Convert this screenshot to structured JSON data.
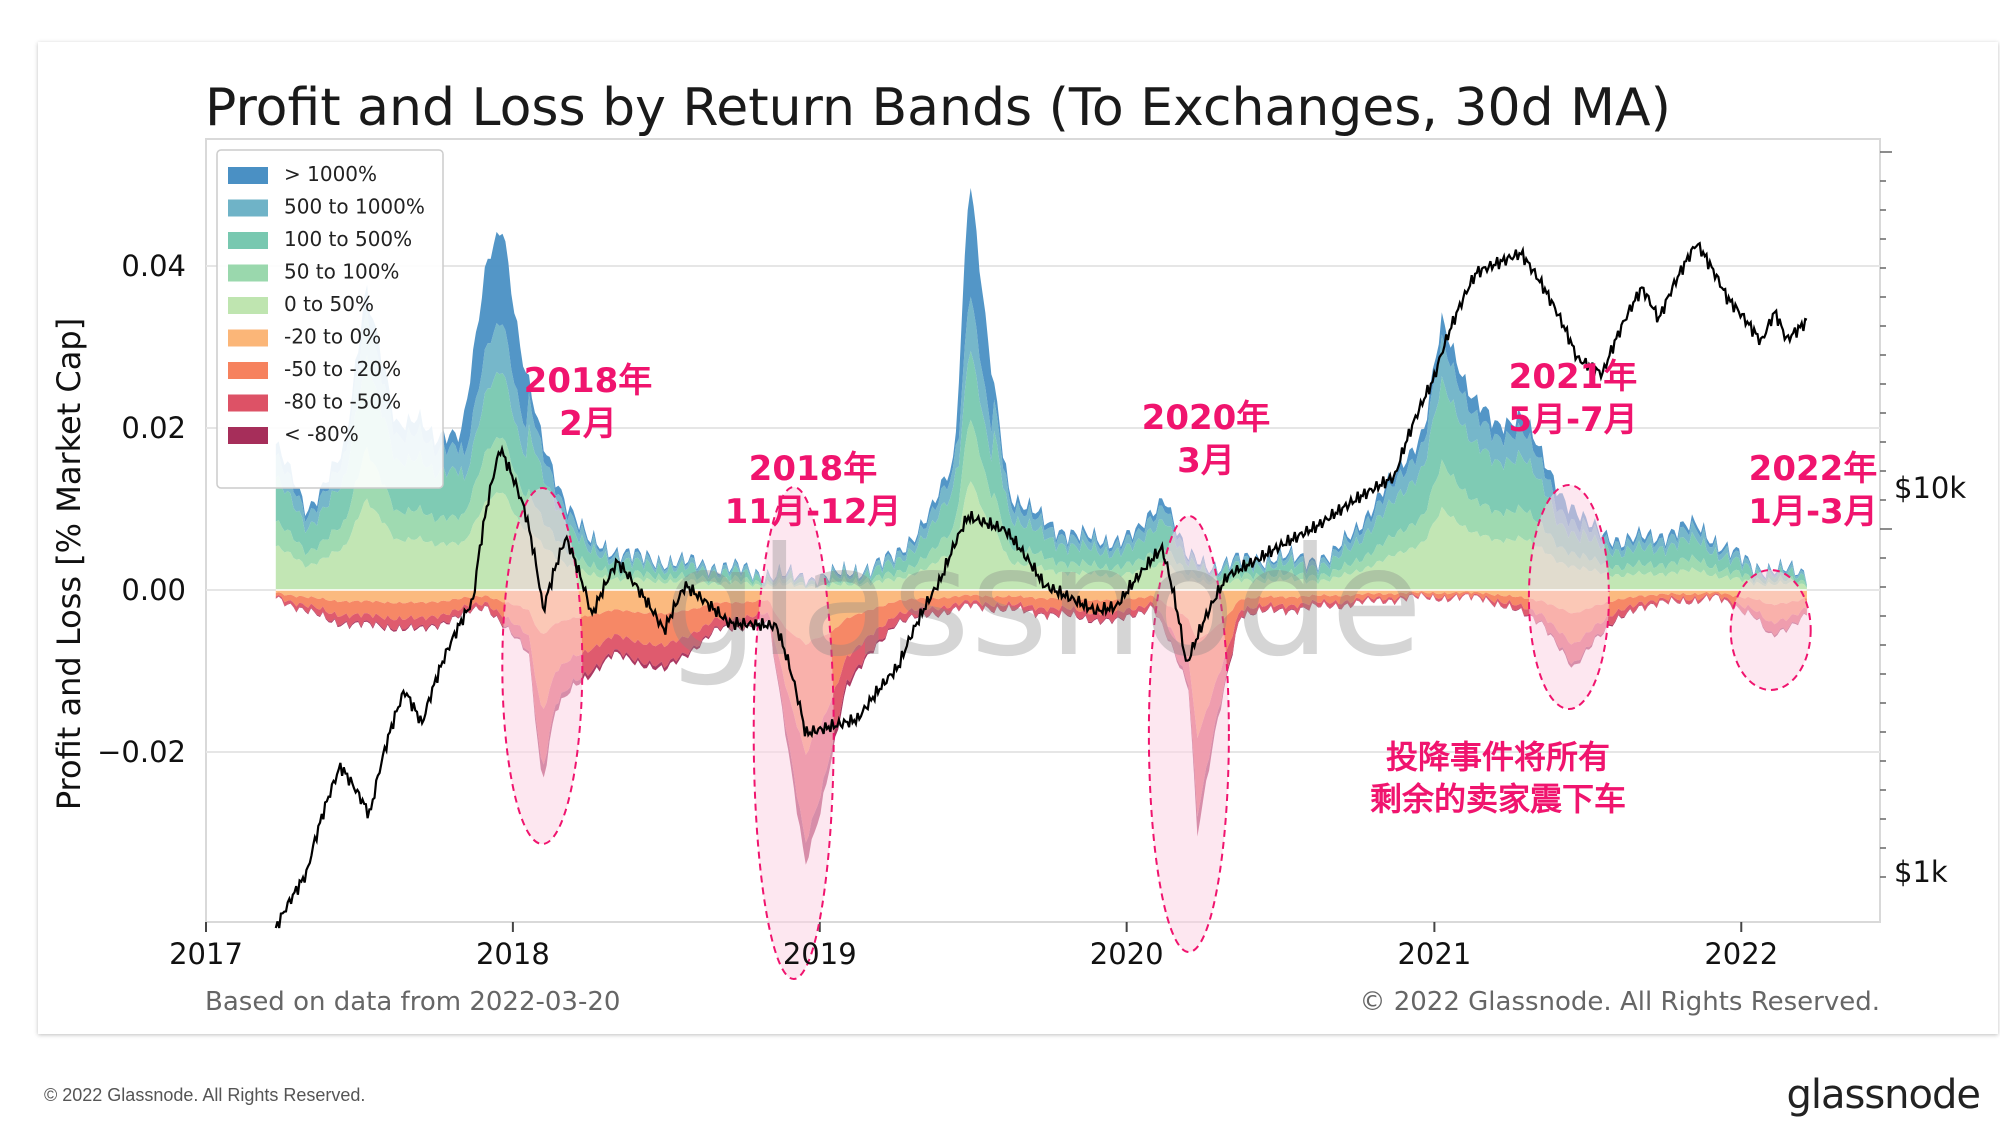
{
  "chart_data": {
    "type": "area",
    "title": "Profit and Loss by Return Bands (To Exchanges, 30d MA)",
    "ylabel": "Profit and Loss [% Market Cap]",
    "ylim": [
      -0.04,
      0.057
    ],
    "yticks": [
      "0.04",
      "0.02",
      "0.00",
      "−0.02"
    ],
    "yticks_values": [
      0.04,
      0.02,
      0.0,
      -0.02
    ],
    "y2ticks": [
      "$10k",
      "$1k"
    ],
    "y2_scale": "log",
    "xticks": [
      "2017",
      "2018",
      "2019",
      "2020",
      "2021",
      "2022"
    ],
    "xlim": [
      "2017-01-01",
      "2022-06-15"
    ],
    "legend_placement": "top-left",
    "grid": true,
    "series": [
      {
        "name": "> 1000%",
        "color": "#4a90c4"
      },
      {
        "name": "500 to 1000%",
        "color": "#6fb3c7"
      },
      {
        "name": "100 to 500%",
        "color": "#78c8b0"
      },
      {
        "name": "50 to 100%",
        "color": "#9ad8ad"
      },
      {
        "name": "0 to 50%",
        "color": "#bfe5b0"
      },
      {
        "name": "-20 to 0%",
        "color": "#fbb678"
      },
      {
        "name": "-50 to -20%",
        "color": "#f6825e"
      },
      {
        "name": "-80 to -50%",
        "color": "#dd5266"
      },
      {
        "name": "< -80%",
        "color": "#a62e5a"
      }
    ],
    "profit_total": [
      [
        "2017-03-25",
        0.018
      ],
      [
        "2017-05-01",
        0.01
      ],
      [
        "2017-06-15",
        0.017
      ],
      [
        "2017-07-10",
        0.038
      ],
      [
        "2017-08-15",
        0.02
      ],
      [
        "2017-09-10",
        0.022
      ],
      [
        "2017-10-01",
        0.018
      ],
      [
        "2017-11-01",
        0.02
      ],
      [
        "2017-12-01",
        0.04
      ],
      [
        "2017-12-20",
        0.045
      ],
      [
        "2018-01-10",
        0.03
      ],
      [
        "2018-02-05",
        0.018
      ],
      [
        "2018-03-01",
        0.012
      ],
      [
        "2018-04-01",
        0.006
      ],
      [
        "2018-06-01",
        0.004
      ],
      [
        "2018-09-01",
        0.003
      ],
      [
        "2018-11-01",
        0.002
      ],
      [
        "2018-12-15",
        0.0015
      ],
      [
        "2019-02-01",
        0.002
      ],
      [
        "2019-04-01",
        0.004
      ],
      [
        "2019-05-15",
        0.01
      ],
      [
        "2019-06-10",
        0.016
      ],
      [
        "2019-06-28",
        0.052
      ],
      [
        "2019-07-20",
        0.03
      ],
      [
        "2019-08-15",
        0.012
      ],
      [
        "2019-10-01",
        0.008
      ],
      [
        "2019-12-01",
        0.006
      ],
      [
        "2020-01-15",
        0.007
      ],
      [
        "2020-02-15",
        0.012
      ],
      [
        "2020-03-12",
        0.004
      ],
      [
        "2020-04-15",
        0.003
      ],
      [
        "2020-06-01",
        0.004
      ],
      [
        "2020-09-01",
        0.004
      ],
      [
        "2020-11-01",
        0.012
      ],
      [
        "2020-12-20",
        0.02
      ],
      [
        "2021-01-10",
        0.033
      ],
      [
        "2021-02-15",
        0.024
      ],
      [
        "2021-03-15",
        0.02
      ],
      [
        "2021-04-15",
        0.022
      ],
      [
        "2021-05-10",
        0.016
      ],
      [
        "2021-06-01",
        0.012
      ],
      [
        "2021-07-01",
        0.008
      ],
      [
        "2021-08-15",
        0.006
      ],
      [
        "2021-10-01",
        0.007
      ],
      [
        "2021-11-10",
        0.008
      ],
      [
        "2021-12-15",
        0.005
      ],
      [
        "2022-01-15",
        0.003
      ],
      [
        "2022-03-20",
        0.002
      ]
    ],
    "loss_total": [
      [
        "2017-03-25",
        -0.001
      ],
      [
        "2017-06-01",
        -0.004
      ],
      [
        "2017-09-15",
        -0.005
      ],
      [
        "2017-12-01",
        -0.002
      ],
      [
        "2018-01-20",
        -0.008
      ],
      [
        "2018-02-05",
        -0.024
      ],
      [
        "2018-02-20",
        -0.015
      ],
      [
        "2018-03-15",
        -0.012
      ],
      [
        "2018-05-01",
        -0.008
      ],
      [
        "2018-07-01",
        -0.01
      ],
      [
        "2018-09-01",
        -0.005
      ],
      [
        "2018-11-01",
        -0.004
      ],
      [
        "2018-11-25",
        -0.02
      ],
      [
        "2018-12-15",
        -0.034
      ],
      [
        "2019-01-01",
        -0.028
      ],
      [
        "2019-02-01",
        -0.012
      ],
      [
        "2019-04-01",
        -0.004
      ],
      [
        "2019-07-01",
        -0.002
      ],
      [
        "2019-10-01",
        -0.003
      ],
      [
        "2019-12-20",
        -0.004
      ],
      [
        "2020-02-01",
        -0.002
      ],
      [
        "2020-03-15",
        -0.012
      ],
      [
        "2020-03-25",
        -0.03
      ],
      [
        "2020-04-15",
        -0.018
      ],
      [
        "2020-05-15",
        -0.003
      ],
      [
        "2020-09-01",
        -0.002
      ],
      [
        "2020-12-01",
        -0.001
      ],
      [
        "2021-03-01",
        -0.001
      ],
      [
        "2021-05-10",
        -0.004
      ],
      [
        "2021-06-15",
        -0.01
      ],
      [
        "2021-07-10",
        -0.006
      ],
      [
        "2021-09-01",
        -0.002
      ],
      [
        "2021-12-01",
        -0.001
      ],
      [
        "2022-01-15",
        -0.003
      ],
      [
        "2022-02-05",
        -0.006
      ],
      [
        "2022-03-20",
        -0.003
      ]
    ],
    "price_usd": [
      [
        "2017-03-25",
        1000
      ],
      [
        "2017-05-01",
        1400
      ],
      [
        "2017-06-10",
        2700
      ],
      [
        "2017-07-15",
        2000
      ],
      [
        "2017-08-25",
        4300
      ],
      [
        "2017-09-15",
        3500
      ],
      [
        "2017-10-15",
        5500
      ],
      [
        "2017-11-15",
        7500
      ],
      [
        "2017-12-17",
        19000
      ],
      [
        "2018-01-15",
        13000
      ],
      [
        "2018-02-06",
        7000
      ],
      [
        "2018-03-05",
        11000
      ],
      [
        "2018-04-05",
        6800
      ],
      [
        "2018-05-05",
        9500
      ],
      [
        "2018-06-30",
        6200
      ],
      [
        "2018-07-25",
        8200
      ],
      [
        "2018-09-15",
        6500
      ],
      [
        "2018-11-10",
        6400
      ],
      [
        "2018-12-15",
        3300
      ],
      [
        "2019-02-15",
        3600
      ],
      [
        "2019-04-05",
        5000
      ],
      [
        "2019-05-25",
        8500
      ],
      [
        "2019-06-26",
        12500
      ],
      [
        "2019-08-10",
        11500
      ],
      [
        "2019-09-25",
        8200
      ],
      [
        "2019-11-25",
        7000
      ],
      [
        "2019-12-20",
        7200
      ],
      [
        "2020-02-12",
        10300
      ],
      [
        "2020-03-12",
        5000
      ],
      [
        "2020-04-30",
        8700
      ],
      [
        "2020-06-01",
        9500
      ],
      [
        "2020-08-15",
        11800
      ],
      [
        "2020-11-15",
        16000
      ],
      [
        "2020-12-31",
        29000
      ],
      [
        "2021-02-20",
        56000
      ],
      [
        "2021-04-14",
        63000
      ],
      [
        "2021-06-20",
        33000
      ],
      [
        "2021-07-20",
        30000
      ],
      [
        "2021-09-05",
        51000
      ],
      [
        "2021-09-25",
        42000
      ],
      [
        "2021-11-09",
        67000
      ],
      [
        "2021-12-15",
        48000
      ],
      [
        "2022-01-25",
        36500
      ],
      [
        "2022-02-10",
        44000
      ],
      [
        "2022-02-24",
        37000
      ],
      [
        "2022-03-20",
        41500
      ]
    ],
    "annotations": [
      {
        "line1": "2018年",
        "line2": "2月",
        "date": "2018-02-05"
      },
      {
        "line1": "2018年",
        "line2": "11月-12月",
        "date": "2018-12-01"
      },
      {
        "line1": "2020年",
        "line2": "3月",
        "date": "2020-03-15"
      },
      {
        "line1": "2021年",
        "line2": "5月-7月",
        "date": "2021-06-10"
      },
      {
        "line1": "2022年",
        "line2": "1月-3月",
        "date": "2022-02-05"
      }
    ],
    "note_line1": "投降事件将所有",
    "note_line2": "剩余的卖家震下车",
    "watermark": "glassnode",
    "source_note": "Based on data from 2022-03-20",
    "copyright": "© 2022 Glassnode. All Rights Reserved."
  },
  "footer": {
    "copyright": "© 2022 Glassnode. All Rights Reserved.",
    "logo": "glassnode"
  },
  "colors": {
    "annotation": "#f0146e",
    "highlight_fill": "#fbd3e4",
    "price_line": "#000000"
  }
}
